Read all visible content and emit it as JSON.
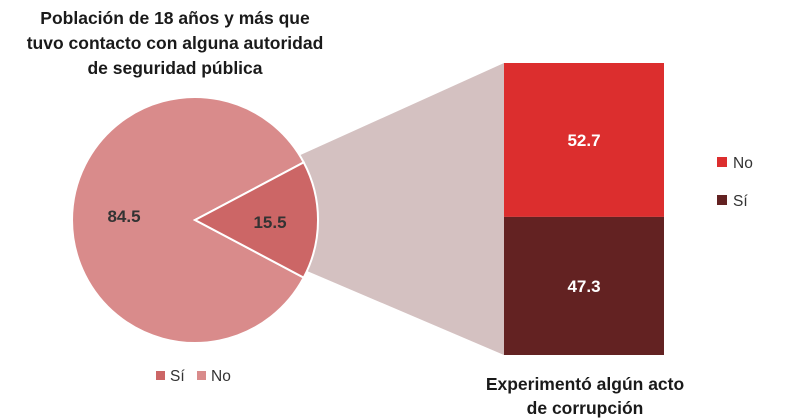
{
  "chart_data": [
    {
      "type": "pie",
      "title": [
        "Población de 18 años y más que",
        "tuvo contacto con alguna autoridad",
        "de seguridad pública"
      ],
      "slices": [
        {
          "label": "Sí",
          "value": 15.5,
          "display": "15.5",
          "color": "#cc6666"
        },
        {
          "label": "No",
          "value": 84.5,
          "display": "84.5",
          "color": "#d98b8b"
        }
      ],
      "legend": [
        {
          "label": "Sí",
          "color": "#cc6666"
        },
        {
          "label": "No",
          "color": "#d98b8b"
        }
      ],
      "legend_position": "bottom"
    },
    {
      "type": "bar",
      "stacked": true,
      "title": [
        "Experimentó algún acto",
        "de corrupción"
      ],
      "segments": [
        {
          "label": "No",
          "value": 52.7,
          "display": "52.7",
          "color": "#dc2e2e"
        },
        {
          "label": "Sí",
          "value": 47.3,
          "display": "47.3",
          "color": "#632222"
        }
      ],
      "legend": [
        {
          "label": "No",
          "color": "#dc2e2e"
        },
        {
          "label": "Sí",
          "color": "#632222"
        }
      ],
      "legend_position": "right"
    }
  ],
  "colors": {
    "connector": "#d4c1c1",
    "value_text_dark": "#333333",
    "value_text_light": "#ffffff"
  }
}
